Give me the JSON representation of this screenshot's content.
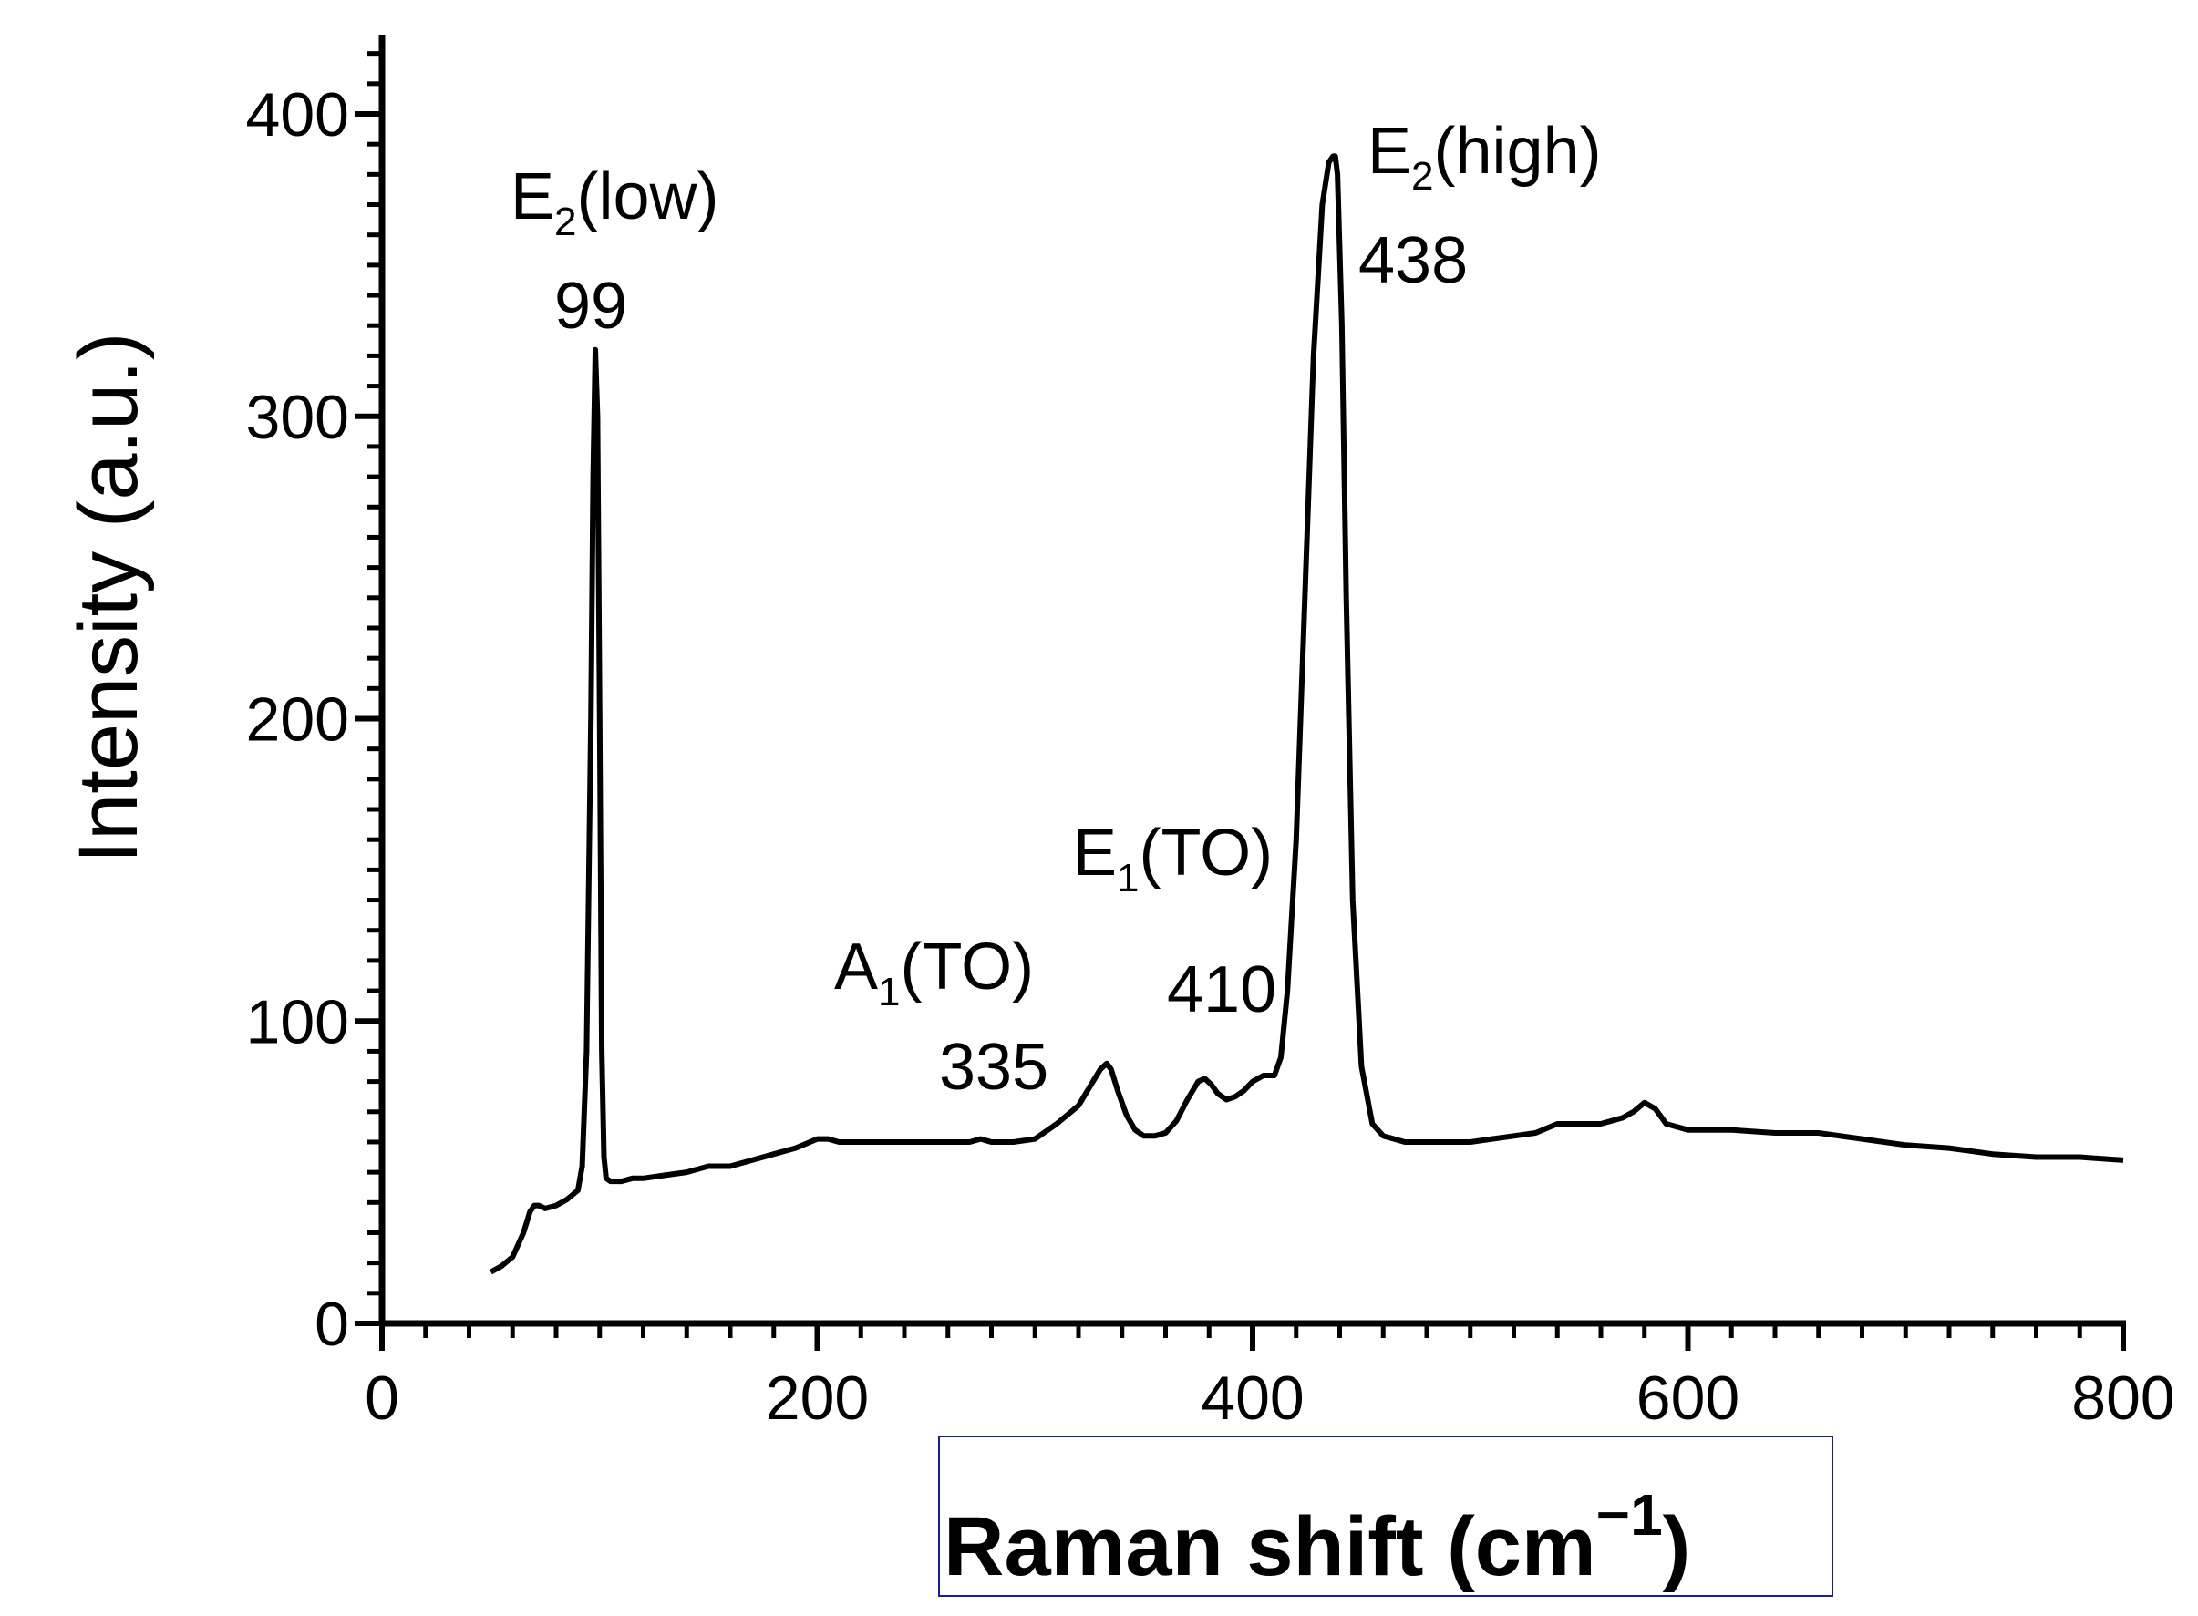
{
  "chart_data": {
    "type": "line",
    "title": "",
    "xlabel": "Raman shift (cm",
    "xlabel_sup": "−1",
    "xlabel_close": ")",
    "ylabel": "Intensity (a.u.)",
    "xlim": [
      0,
      800
    ],
    "ylim": [
      0,
      425
    ],
    "xticks": [
      "0",
      "200",
      "400",
      "600",
      "800"
    ],
    "yticks": [
      "0",
      "100",
      "200",
      "300",
      "400"
    ],
    "grid": false,
    "legend": "none",
    "line_color": "#000000",
    "xlabel_box_color": "#1a1aa0",
    "series": [
      {
        "x": [
          50,
          55,
          60,
          65,
          68,
          70,
          72,
          75,
          80,
          85,
          90,
          92,
          94,
          96,
          97,
          98,
          99,
          100,
          101,
          102,
          103,
          105,
          108,
          110,
          115,
          120,
          130,
          140,
          150,
          160,
          170,
          180,
          190,
          200,
          205,
          210,
          220,
          230,
          240,
          250,
          260,
          270,
          275,
          280,
          290,
          300,
          310,
          320,
          325,
          330,
          333,
          335,
          338,
          342,
          346,
          350,
          355,
          360,
          365,
          370,
          375,
          378,
          381,
          384,
          388,
          392,
          396,
          400,
          405,
          410,
          413,
          416,
          420,
          424,
          428,
          432,
          435,
          437,
          438,
          439,
          441,
          443,
          446,
          450,
          455,
          460,
          465,
          470,
          480,
          490,
          500,
          510,
          520,
          530,
          540,
          550,
          560,
          570,
          575,
          580,
          585,
          590,
          600,
          620,
          640,
          660,
          680,
          700,
          720,
          740,
          760,
          780,
          800
        ],
        "y": [
          17,
          19,
          22,
          30,
          37,
          39,
          39,
          38,
          39,
          41,
          44,
          52,
          90,
          200,
          280,
          322,
          300,
          200,
          90,
          55,
          48,
          47,
          47,
          47,
          48,
          48,
          49,
          50,
          52,
          52,
          54,
          56,
          58,
          61,
          61,
          60,
          60,
          60,
          60,
          60,
          60,
          60,
          61,
          60,
          60,
          61,
          66,
          72,
          78,
          84,
          86,
          84,
          77,
          69,
          64,
          62,
          62,
          63,
          67,
          74,
          80,
          81,
          79,
          76,
          74,
          75,
          77,
          80,
          82,
          82,
          88,
          110,
          160,
          240,
          320,
          370,
          384,
          386,
          386,
          380,
          330,
          240,
          140,
          85,
          66,
          62,
          61,
          60,
          60,
          60,
          60,
          61,
          62,
          63,
          66,
          66,
          66,
          68,
          70,
          73,
          71,
          66,
          64,
          64,
          63,
          63,
          61,
          59,
          58,
          56,
          55,
          55,
          54
        ]
      }
    ],
    "annotations": [
      {
        "main": "E",
        "sub": "2",
        "tail": "(low)",
        "value": "99",
        "x": 99
      },
      {
        "main": "A",
        "sub": "1",
        "tail": "(TO)",
        "value": "335",
        "x": 335
      },
      {
        "main": "E",
        "sub": "1",
        "tail": "(TO)",
        "value": "410",
        "x": 410
      },
      {
        "main": "E",
        "sub": "2",
        "tail": "(high)",
        "value": "438",
        "x": 438
      }
    ]
  }
}
